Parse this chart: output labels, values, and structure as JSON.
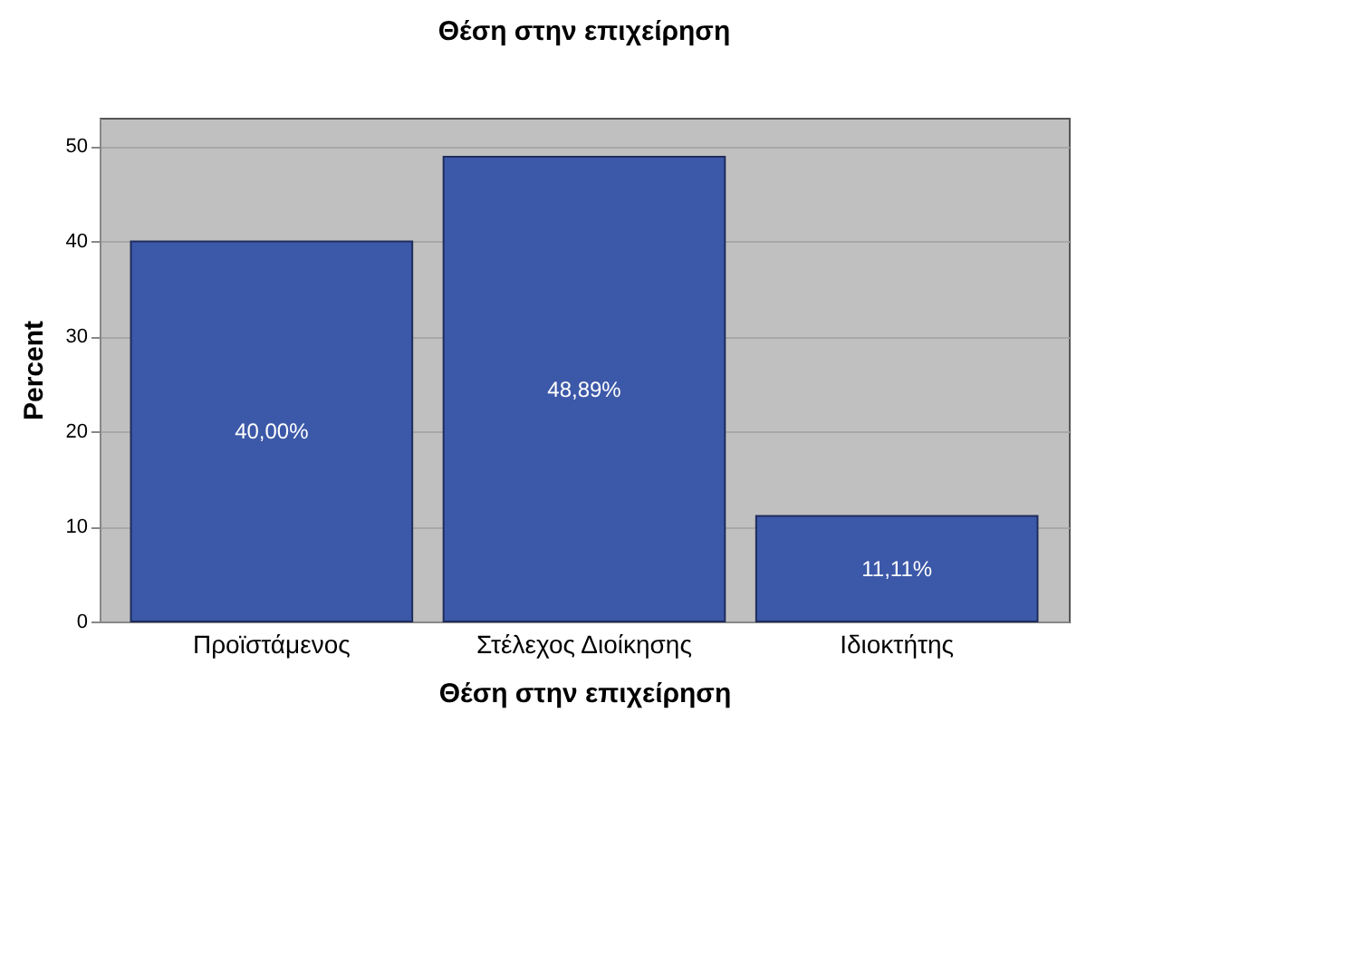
{
  "chart_data": {
    "type": "bar",
    "title": "Θέση στην επιχείρηση",
    "xlabel": "Θέση στην επιχείρηση",
    "ylabel": "Percent",
    "categories": [
      "Προϊστάμενος",
      "Στέλεχος Διοίκησης",
      "Ιδιοκτήτης"
    ],
    "values": [
      40.0,
      48.89,
      11.11
    ],
    "value_labels": [
      "40,00%",
      "48,89%",
      "11,11%"
    ],
    "color": "#3c58a8",
    "ylim": [
      0,
      53
    ],
    "yticks": [
      0,
      10,
      20,
      30,
      40,
      50
    ],
    "grid": "y"
  }
}
